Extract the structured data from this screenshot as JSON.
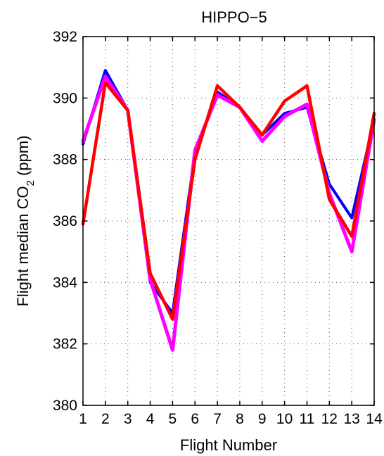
{
  "chart_data": {
    "type": "line",
    "title": "HIPPO−5",
    "xlabel": "Flight Number",
    "ylabel_main": "Flight median CO",
    "ylabel_sub": "2",
    "ylabel_tail": " (ppm)",
    "xlim": [
      1,
      14
    ],
    "ylim": [
      380,
      392
    ],
    "x_ticks": [
      1,
      2,
      3,
      4,
      5,
      6,
      7,
      8,
      9,
      10,
      11,
      12,
      13,
      14
    ],
    "y_ticks": [
      380,
      382,
      384,
      386,
      388,
      390,
      392
    ],
    "grid": true,
    "x": [
      1,
      2,
      3,
      4,
      5,
      6,
      7,
      8,
      9,
      10,
      11,
      12,
      13,
      14
    ],
    "series": [
      {
        "color": "#0000ff",
        "width": 4,
        "values": [
          388.5,
          390.9,
          389.6,
          384.0,
          383.0,
          388.2,
          390.2,
          389.7,
          388.8,
          389.5,
          389.7,
          387.2,
          386.1,
          389.3
        ]
      },
      {
        "color": "#ff00ff",
        "width": 5,
        "values": [
          388.6,
          390.7,
          389.6,
          384.1,
          381.8,
          388.3,
          390.1,
          389.7,
          388.6,
          389.4,
          389.8,
          386.9,
          385.0,
          389.3
        ]
      },
      {
        "color": "#ff0000",
        "width": 4.5,
        "values": [
          385.9,
          390.5,
          389.6,
          384.3,
          382.8,
          388.0,
          390.4,
          389.7,
          388.8,
          389.9,
          390.4,
          386.7,
          385.5,
          389.5
        ]
      }
    ]
  }
}
